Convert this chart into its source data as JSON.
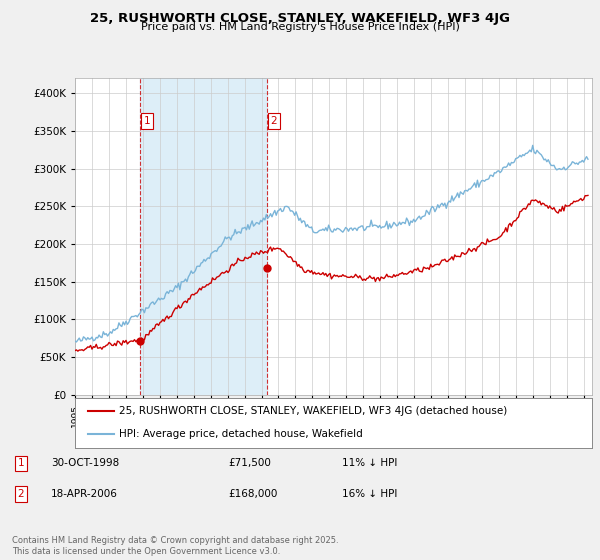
{
  "title": "25, RUSHWORTH CLOSE, STANLEY, WAKEFIELD, WF3 4JG",
  "subtitle": "Price paid vs. HM Land Registry's House Price Index (HPI)",
  "ytick_vals": [
    0,
    50000,
    100000,
    150000,
    200000,
    250000,
    300000,
    350000,
    400000
  ],
  "ylim": [
    0,
    420000
  ],
  "hpi_color": "#7ab4d8",
  "hpi_shade_color": "#ddeef8",
  "price_color": "#cc0000",
  "vline_color": "#cc0000",
  "purchase1_date": "30-OCT-1998",
  "purchase1_price": 71500,
  "purchase1_label": "11% ↓ HPI",
  "purchase2_date": "18-APR-2006",
  "purchase2_price": 168000,
  "purchase2_label": "16% ↓ HPI",
  "legend_line1": "25, RUSHWORTH CLOSE, STANLEY, WAKEFIELD, WF3 4JG (detached house)",
  "legend_line2": "HPI: Average price, detached house, Wakefield",
  "footnote": "Contains HM Land Registry data © Crown copyright and database right 2025.\nThis data is licensed under the Open Government Licence v3.0.",
  "background_color": "#f0f0f0",
  "plot_bg_color": "#ffffff",
  "grid_color": "#cccccc",
  "start_year": 1995,
  "end_year": 2025
}
